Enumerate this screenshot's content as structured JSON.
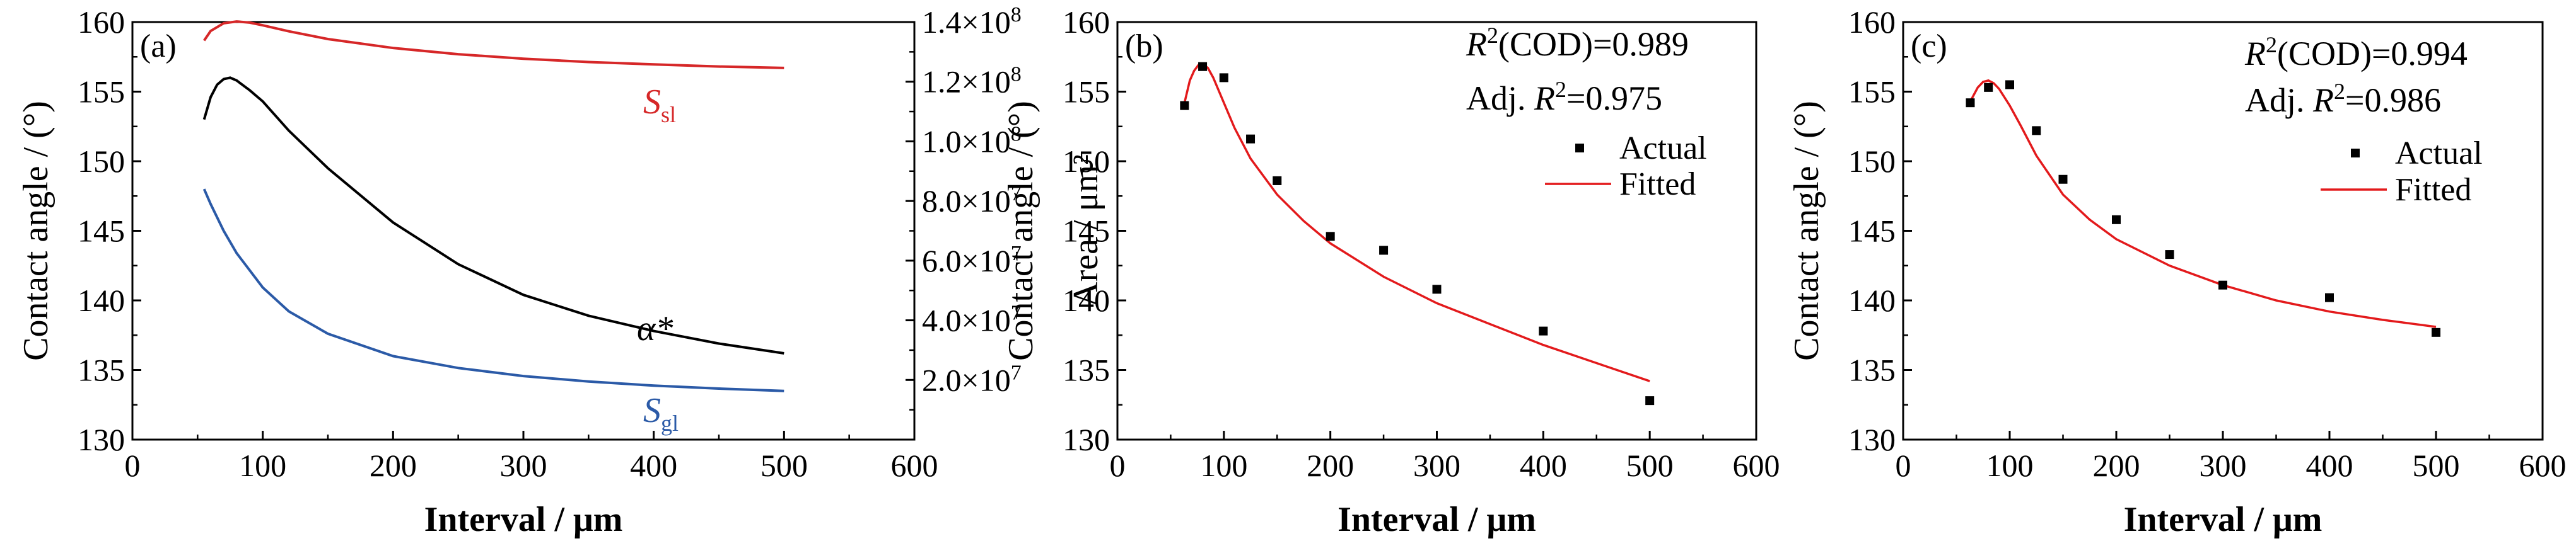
{
  "colors": {
    "axis": "#000000",
    "fitted": "#e31a1c",
    "actual": "#000000",
    "s_sl": "#d62728",
    "alpha": "#000000",
    "s_gl": "#2b5aa7"
  },
  "chart_data": [
    {
      "id": "a",
      "type": "line",
      "panel_label": "(a)",
      "xlabel": "Interval / μm",
      "ylabel": "Contact angle / (°)",
      "y2label": "Area / μm²",
      "xlim": [
        0,
        600
      ],
      "ylim": [
        130,
        160
      ],
      "y2lim": [
        0,
        140000000
      ],
      "x_ticks": [
        "0",
        "100",
        "200",
        "300",
        "400",
        "500",
        "600"
      ],
      "y_ticks": [
        "130",
        "135",
        "140",
        "145",
        "150",
        "155",
        "160"
      ],
      "y2_ticks": [
        {
          "mantissa": "2.0",
          "exp": "7"
        },
        {
          "mantissa": "4.0",
          "exp": "7"
        },
        {
          "mantissa": "6.0",
          "exp": "7"
        },
        {
          "mantissa": "8.0",
          "exp": "7"
        },
        {
          "mantissa": "1.0",
          "exp": "8"
        },
        {
          "mantissa": "1.2",
          "exp": "8"
        },
        {
          "mantissa": "1.4",
          "exp": "8"
        }
      ],
      "grid": false,
      "series": [
        {
          "label_main": "S",
          "label_sub": "sl",
          "color_key": "s_sl",
          "axis": "y2",
          "x": [
            55,
            60,
            70,
            80,
            90,
            100,
            120,
            150,
            200,
            250,
            300,
            350,
            400,
            450,
            500
          ],
          "y": [
            133800000,
            137000000,
            139600000,
            140200000,
            139800000,
            138900000,
            136900000,
            134300000,
            131300000,
            129200000,
            127700000,
            126600000,
            125800000,
            125100000,
            124600000
          ]
        },
        {
          "label_main": "α*",
          "label_sub": "",
          "color_key": "alpha",
          "axis": "y",
          "x": [
            55,
            60,
            65,
            70,
            75,
            80,
            90,
            100,
            120,
            150,
            200,
            250,
            300,
            350,
            400,
            450,
            500
          ],
          "y": [
            153,
            154.6,
            155.5,
            155.9,
            156,
            155.8,
            155.1,
            154.3,
            152.2,
            149.5,
            145.6,
            142.6,
            140.4,
            138.9,
            137.8,
            136.9,
            136.2
          ]
        },
        {
          "label_main": "S",
          "label_sub": "gl",
          "color_key": "s_gl",
          "axis": "y2",
          "x": [
            55,
            60,
            70,
            80,
            100,
            120,
            150,
            200,
            250,
            300,
            350,
            400,
            450,
            500
          ],
          "y": [
            84000000,
            79000000,
            70000000,
            62500000,
            51000000,
            43000000,
            35500000,
            28000000,
            24000000,
            21300000,
            19500000,
            18100000,
            17100000,
            16300000
          ]
        }
      ]
    },
    {
      "id": "b",
      "type": "scatter",
      "panel_label": "(b)",
      "xlabel": "Interval  / μm",
      "ylabel": "Contact angle / (°)",
      "xlim": [
        0,
        600
      ],
      "ylim": [
        130,
        160
      ],
      "x_ticks": [
        "0",
        "100",
        "200",
        "300",
        "400",
        "500",
        "600"
      ],
      "y_ticks": [
        "130",
        "135",
        "140",
        "145",
        "150",
        "155",
        "160"
      ],
      "grid": false,
      "stat1": {
        "r": "R",
        "sup": "2",
        "rest": "(COD)=0.989"
      },
      "stat2": {
        "prefix": "Adj. ",
        "r": "R",
        "sup": "2",
        "rest": "=0.975"
      },
      "legend": {
        "actual": "Actual",
        "fitted": "Fitted",
        "position": "right"
      },
      "actual": {
        "x": [
          63,
          80,
          100,
          125,
          150,
          200,
          250,
          300,
          400,
          500
        ],
        "y": [
          154,
          156.8,
          156,
          151.6,
          148.6,
          144.6,
          143.6,
          140.8,
          137.8,
          132.8
        ]
      },
      "fitted": {
        "x": [
          63,
          68,
          72,
          76,
          80,
          85,
          90,
          100,
          110,
          125,
          150,
          175,
          200,
          250,
          300,
          350,
          400,
          450,
          500
        ],
        "y": [
          154.2,
          155.8,
          156.5,
          156.9,
          157,
          156.7,
          156,
          154.2,
          152.4,
          150.2,
          147.6,
          145.7,
          144.1,
          141.7,
          139.8,
          138.3,
          136.8,
          135.5,
          134.2
        ]
      }
    },
    {
      "id": "c",
      "type": "scatter",
      "panel_label": "(c)",
      "xlabel": "Interval / μm",
      "ylabel": "Contact angle / (°)",
      "xlim": [
        0,
        600
      ],
      "ylim": [
        130,
        160
      ],
      "x_ticks": [
        "0",
        "100",
        "200",
        "300",
        "400",
        "500",
        "600"
      ],
      "y_ticks": [
        "130",
        "135",
        "140",
        "145",
        "150",
        "155",
        "160"
      ],
      "grid": false,
      "stat1": {
        "r": "R",
        "sup": "2",
        "rest": "(COD)=0.994"
      },
      "stat2": {
        "prefix": "Adj. ",
        "r": "R",
        "sup": "2",
        "rest": "=0.986"
      },
      "legend": {
        "actual": "Actual",
        "fitted": "Fitted",
        "position": "right"
      },
      "actual": {
        "x": [
          63,
          80,
          100,
          125,
          150,
          200,
          250,
          300,
          400,
          500
        ],
        "y": [
          154.2,
          155.3,
          155.5,
          152.2,
          148.7,
          145.8,
          143.3,
          141.1,
          140.2,
          137.7
        ]
      },
      "fitted": {
        "x": [
          63,
          70,
          75,
          80,
          85,
          90,
          100,
          110,
          125,
          150,
          175,
          200,
          250,
          300,
          350,
          400,
          450,
          500
        ],
        "y": [
          154.3,
          155.3,
          155.7,
          155.8,
          155.6,
          155.2,
          154,
          152.6,
          150.4,
          147.6,
          145.8,
          144.4,
          142.5,
          141.1,
          140,
          139.2,
          138.6,
          138.1
        ]
      }
    }
  ]
}
